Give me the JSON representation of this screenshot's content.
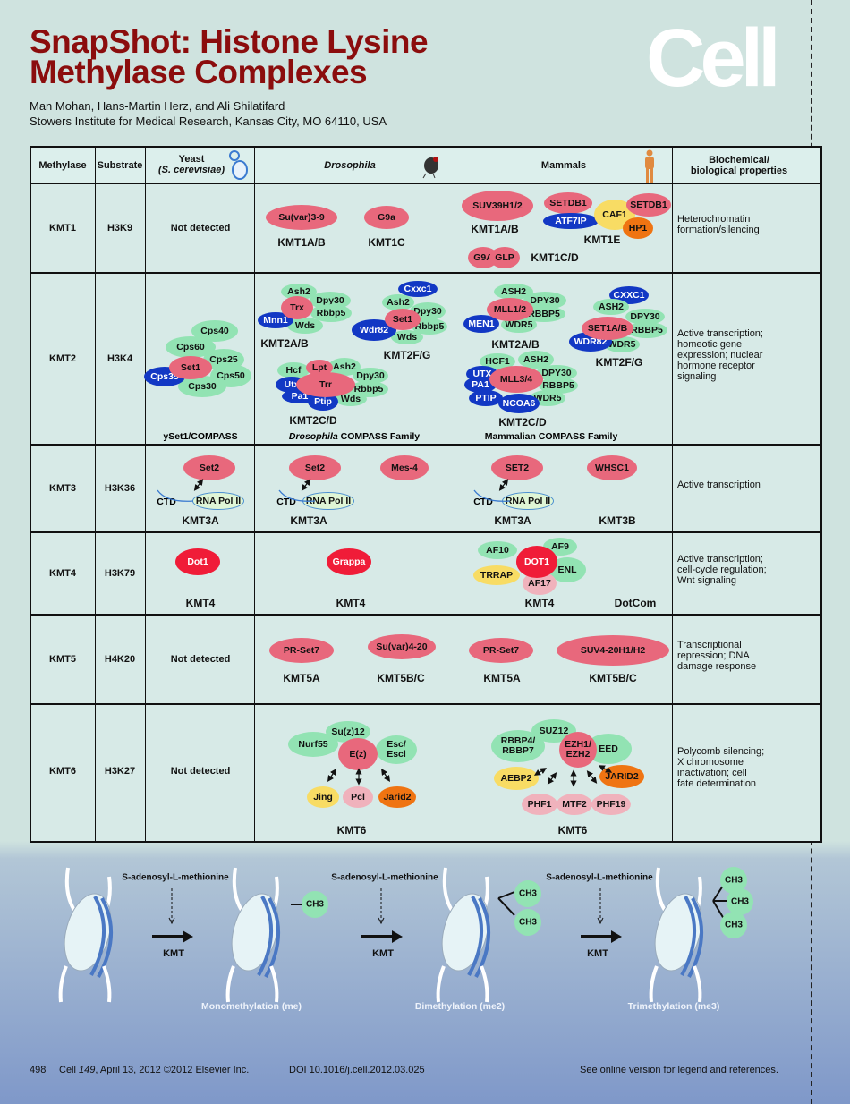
{
  "header": {
    "title_line1": "SnapShot: Histone Lysine",
    "title_line2": "Methylase Complexes",
    "authors": "Man Mohan, Hans-Martin Herz, and Ali Shilatifard",
    "affiliation": "Stowers Institute for Medical Research, Kansas City, MO 64110, USA",
    "journal_logo": "Cell"
  },
  "columns": {
    "methylase": "Methylase",
    "substrate": "Substrate",
    "yeast": "Yeast",
    "yeast_species": "(S. cerevisiae)",
    "drosophila": "Drosophila",
    "mammals": "Mammals",
    "properties": "Biochemical/\nbiological properties"
  },
  "icons": {
    "yeast": "yeast-cell-icon",
    "drosophila": "fruit-fly-icon",
    "mammals": "human-figure-icon"
  },
  "protein_colors": {
    "catalytic": "#e8687c",
    "core_subunit": "#92e3b3",
    "accessory": "#1238c4",
    "dot1": "#f01c38",
    "yellow": "#f8dc64",
    "orange": "#ef7412",
    "light_pink": "#f0b2bc"
  },
  "rows": [
    {
      "methylase": "KMT1",
      "substrate": "H3K9",
      "yeast": {
        "text": "Not detected"
      },
      "drosophila": {
        "proteins": [
          "Su(var)3-9",
          "G9a"
        ],
        "complexes": [
          "KMT1A/B",
          "KMT1C"
        ]
      },
      "mammals": {
        "proteins": [
          "SUV39H1/2",
          "SETDB1",
          "ATF7IP",
          "CAF1",
          "SETDB1",
          "HP1",
          "G9A",
          "GLP"
        ],
        "complexes": [
          "KMT1A/B",
          "KMT1E",
          "KMT1C/D"
        ]
      },
      "properties": "Heterochromatin\nformation/silencing"
    },
    {
      "methylase": "KMT2",
      "substrate": "H3K4",
      "yeast": {
        "proteins": [
          "Cps40",
          "Cps60",
          "Cps25",
          "Set1",
          "Cps50",
          "Cps35",
          "Cps30"
        ],
        "complexes": [
          "ySet1/COMPASS"
        ]
      },
      "drosophila": {
        "proteins": [
          "Ash2",
          "Dpy30",
          "Trx",
          "Rbbp5",
          "Mnn1",
          "Wds",
          "Cxxc1",
          "Ash2",
          "Dpy30",
          "Set1",
          "Rbbp5",
          "Wdr82",
          "Wds",
          "Hcf",
          "Lpt",
          "Ash2",
          "Dpy30",
          "Utx",
          "Trr",
          "Rbbp5",
          "Pa1",
          "Wds",
          "Ptip"
        ],
        "complexes": [
          "KMT2A/B",
          "KMT2F/G",
          "KMT2C/D"
        ],
        "caption_italic": "Drosophila",
        "caption": " COMPASS Family"
      },
      "mammals": {
        "proteins": [
          "ASH2",
          "DPY30",
          "MLL1/2",
          "RBBP5",
          "MEN1",
          "WDR5",
          "CXXC1",
          "ASH2",
          "DPY30",
          "SET1A/B",
          "RBBP5",
          "WDR82",
          "WDR5",
          "HCF1",
          "ASH2",
          "DPY30",
          "UTX",
          "MLL3/4",
          "RBBP5",
          "PA1",
          "PTIP",
          "WDR5",
          "NCOA6"
        ],
        "complexes": [
          "KMT2A/B",
          "KMT2F/G",
          "KMT2C/D"
        ],
        "caption": "Mammalian COMPASS Family"
      },
      "properties": "Active transcription;\nhomeotic gene\nexpression; nuclear\nhormone receptor\nsignaling"
    },
    {
      "methylase": "KMT3",
      "substrate": "H3K36",
      "yeast": {
        "proteins": [
          "Set2",
          "RNA Pol II"
        ],
        "ctd": "CTD",
        "complexes": [
          "KMT3A"
        ]
      },
      "drosophila": {
        "proteins": [
          "Set2",
          "RNA Pol II",
          "Mes-4"
        ],
        "ctd": "CTD",
        "complexes": [
          "KMT3A"
        ]
      },
      "mammals": {
        "proteins": [
          "SET2",
          "RNA Pol II",
          "WHSC1"
        ],
        "ctd": "CTD",
        "complexes": [
          "KMT3A",
          "KMT3B"
        ]
      },
      "properties": "Active transcription"
    },
    {
      "methylase": "KMT4",
      "substrate": "H3K79",
      "yeast": {
        "proteins": [
          "Dot1"
        ],
        "complexes": [
          "KMT4"
        ]
      },
      "drosophila": {
        "proteins": [
          "Grappa"
        ],
        "complexes": [
          "KMT4"
        ]
      },
      "mammals": {
        "proteins": [
          "AF10",
          "DOT1",
          "AF9",
          "ENL",
          "TRRAP",
          "AF17"
        ],
        "complexes": [
          "KMT4",
          "DotCom"
        ]
      },
      "properties": "Active transcription;\ncell-cycle regulation;\nWnt signaling"
    },
    {
      "methylase": "KMT5",
      "substrate": "H4K20",
      "yeast": {
        "text": "Not detected"
      },
      "drosophila": {
        "proteins": [
          "PR-Set7",
          "Su(var)4-20"
        ],
        "complexes": [
          "KMT5A",
          "KMT5B/C"
        ]
      },
      "mammals": {
        "proteins": [
          "PR-Set7",
          "SUV4-20H1/H2"
        ],
        "complexes": [
          "KMT5A",
          "KMT5B/C"
        ]
      },
      "properties": "Transcriptional\nrepression; DNA\ndamage response"
    },
    {
      "methylase": "KMT6",
      "substrate": "H3K27",
      "yeast": {
        "text": "Not detected"
      },
      "drosophila": {
        "proteins": [
          "Su(z)12",
          "Nurf55",
          "E(z)",
          "Esc/\nEscl",
          "Jing",
          "Pcl",
          "Jarid2"
        ],
        "complexes": [
          "KMT6"
        ]
      },
      "mammals": {
        "proteins": [
          "SUZ12",
          "RBBP4/\nRBBP7",
          "EZH1/\nEZH2",
          "EED",
          "AEBP2",
          "JARID2",
          "PHF1",
          "MTF2",
          "PHF19"
        ],
        "complexes": [
          "KMT6"
        ]
      },
      "properties": "Polycomb silencing;\nX chromosome\ninactivation; cell\nfate determination"
    }
  ],
  "reaction": {
    "cofactor": "S-adenosyl-L-methionine",
    "enzyme": "KMT",
    "methyl": "CH3",
    "states": [
      "Monomethylation (me)",
      "Dimethylation (me2)",
      "Trimethylation (me3)"
    ]
  },
  "footer": {
    "page": "498",
    "journal": "Cell ",
    "volume": "149",
    "citation": ", April 13, 2012 ©2012 Elsevier Inc.",
    "doi": "DOI 10.1016/j.cell.2012.03.025",
    "note": "See online version for legend and references."
  }
}
